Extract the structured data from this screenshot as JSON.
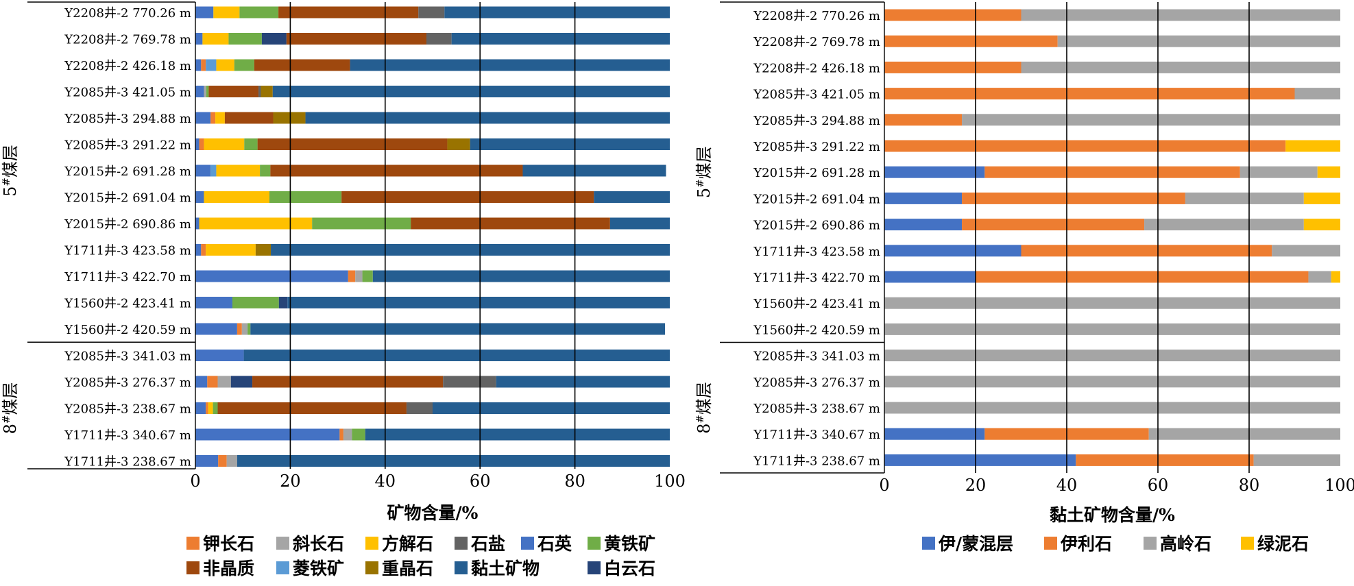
{
  "colors": {
    "钾长石": "#ED7D31",
    "斜长石": "#A5A5A5",
    "方解石": "#FFC000",
    "石盐": "#636363",
    "石英": "#4472C4",
    "黄铁矿": "#70AD47",
    "非晶质": "#9E480E",
    "菱铁矿": "#5B9BD5",
    "重晶石": "#997300",
    "黏土矿物": "#255E91",
    "白云石": "#264478",
    "伊/蒙混层": "#4472C4",
    "伊利石": "#ED7D31",
    "高岭石": "#A5A5A5",
    "绿泥石": "#FFC000"
  },
  "chart_data": [
    {
      "type": "bar",
      "orientation": "horizontal",
      "stacked": true,
      "xlabel": "矿物含量/%",
      "xlim": [
        0,
        100
      ],
      "xticks": [
        "0",
        "20",
        "40",
        "60",
        "80",
        "100"
      ],
      "grid": true,
      "legend_position": "bottom",
      "groups": [
        {
          "label": "5#煤层",
          "sup": "#",
          "base": "5",
          "suffix": "煤层",
          "rows": [
            0,
            12
          ]
        },
        {
          "label": "8#煤层",
          "sup": "#",
          "base": "8",
          "suffix": "煤层",
          "rows": [
            13,
            17
          ]
        }
      ],
      "categories": [
        "Y2208井-2 770.26 m",
        "Y2208井-2 769.78 m",
        "Y2208井-2 426.18 m",
        "Y2085井-3 421.05 m",
        "Y2085井-3 294.88 m",
        "Y2085井-3 291.22 m",
        "Y2015井-2 691.28 m",
        "Y2015井-2 691.04 m",
        "Y2015井-2 690.86 m",
        "Y1711井-3 423.58 m",
        "Y1711井-3 422.70 m",
        "Y1560井-2 423.41 m",
        "Y1560井-2 420.59 m",
        "Y2085井-3 341.03 m",
        "Y2085井-3 276.37 m",
        "Y2085井-3 238.67 m",
        "Y1711井-3 340.67 m",
        "Y1711井-3 238.67 m"
      ],
      "series": [
        {
          "name": "石英",
          "values": [
            3.8,
            1.5,
            1.2,
            1.8,
            3.2,
            0.8,
            3.2,
            1.8,
            0.8,
            1.2,
            32.2,
            7.8,
            8.8,
            10.2,
            2.5,
            2.2,
            30.4,
            4.8
          ]
        },
        {
          "name": "钾长石",
          "values": [
            0,
            0,
            1.0,
            0,
            1.0,
            1.0,
            0,
            0,
            0,
            1.0,
            1.5,
            0,
            1.0,
            0,
            2.2,
            0.5,
            0.8,
            1.8
          ]
        },
        {
          "name": "斜长石",
          "values": [
            0,
            0,
            0,
            0.5,
            0,
            0,
            0,
            0,
            0,
            0,
            1.5,
            0,
            1.2,
            0,
            2.8,
            0,
            1.8,
            2.2
          ]
        },
        {
          "name": "菱铁矿",
          "values": [
            0,
            0,
            2.2,
            0,
            0,
            0,
            1.2,
            0,
            0,
            0,
            0,
            0,
            0,
            0,
            0,
            0,
            0,
            0
          ]
        },
        {
          "name": "方解石",
          "values": [
            5.5,
            5.5,
            3.8,
            0,
            2.0,
            8.5,
            9.2,
            13.8,
            23.8,
            10.5,
            0,
            0,
            0,
            0,
            0,
            1.0,
            0,
            0
          ]
        },
        {
          "name": "黄铁矿",
          "values": [
            8.2,
            7.0,
            4.2,
            0.5,
            0,
            2.8,
            2.2,
            15.2,
            20.8,
            0,
            2.2,
            9.8,
            0.6,
            0,
            0,
            1.0,
            2.8,
            0
          ]
        },
        {
          "name": "白云石",
          "values": [
            0,
            5.2,
            0,
            0,
            0,
            0,
            0,
            0,
            0,
            0,
            0,
            1.8,
            0,
            0,
            4.5,
            0,
            0,
            0
          ]
        },
        {
          "name": "非晶质",
          "values": [
            29.5,
            29.5,
            20.2,
            10.5,
            10.2,
            40.0,
            53.2,
            53.2,
            42.0,
            0,
            0,
            0,
            0,
            0,
            40.2,
            39.8,
            0,
            0
          ]
        },
        {
          "name": "石盐",
          "values": [
            5.5,
            5.3,
            0,
            0.5,
            0,
            0,
            0,
            0,
            0,
            0,
            0,
            0,
            0,
            0,
            11.2,
            5.5,
            0,
            0
          ]
        },
        {
          "name": "重晶石",
          "values": [
            0,
            0,
            0,
            2.5,
            6.8,
            4.8,
            0,
            0,
            0,
            3.2,
            0,
            0,
            0,
            0,
            0,
            0,
            0,
            0
          ]
        },
        {
          "name": "黏土矿物",
          "values": [
            47.5,
            46.0,
            67.4,
            83.7,
            76.8,
            42.1,
            30.2,
            16.0,
            12.6,
            84.1,
            62.6,
            80.6,
            87.4,
            89.8,
            36.6,
            50.0,
            64.2,
            91.2
          ]
        }
      ],
      "legend": [
        [
          "钾长石",
          "斜长石",
          "方解石",
          "石盐",
          "石英",
          "黄铁矿"
        ],
        [
          "非晶质",
          "菱铁矿",
          "重晶石",
          "黏土矿物",
          "白云石"
        ]
      ]
    },
    {
      "type": "bar",
      "orientation": "horizontal",
      "stacked": true,
      "xlabel": "黏土矿物含量/%",
      "xlim": [
        0,
        100
      ],
      "xticks": [
        "0",
        "20",
        "40",
        "60",
        "80",
        "100"
      ],
      "grid": true,
      "legend_position": "bottom",
      "groups": [
        {
          "label": "5#煤层",
          "sup": "#",
          "base": "5",
          "suffix": "煤层",
          "rows": [
            0,
            12
          ]
        },
        {
          "label": "8#煤层",
          "sup": "#",
          "base": "8",
          "suffix": "煤层",
          "rows": [
            13,
            17
          ]
        }
      ],
      "categories": [
        "Y2208井-2 770.26 m",
        "Y2208井-2 769.78 m",
        "Y2208井-2 426.18 m",
        "Y2085井-3 421.05 m",
        "Y2085井-3 294.88 m",
        "Y2085井-3 291.22 m",
        "Y2015井-2 691.28 m",
        "Y2015井-2 691.04 m",
        "Y2015井-2 690.86 m",
        "Y1711井-3 423.58 m",
        "Y1711井-3 422.70 m",
        "Y1560井-2 423.41 m",
        "Y1560井-2 420.59 m",
        "Y2085井-3 341.03 m",
        "Y2085井-3 276.37 m",
        "Y2085井-3 238.67 m",
        "Y1711井-3 340.67 m",
        "Y1711井-3 238.67 m"
      ],
      "series": [
        {
          "name": "伊/蒙混层",
          "values": [
            0,
            0,
            0,
            0,
            0,
            0,
            22,
            17,
            17,
            30,
            20,
            0,
            0,
            0,
            0,
            0,
            22,
            42
          ]
        },
        {
          "name": "伊利石",
          "values": [
            30,
            38,
            30,
            90,
            17,
            88,
            56,
            49,
            40,
            55,
            73,
            0,
            0,
            0,
            0,
            0,
            36,
            39
          ]
        },
        {
          "name": "高岭石",
          "values": [
            70,
            62,
            70,
            10,
            83,
            0,
            17,
            26,
            35,
            15,
            5,
            100,
            100,
            100,
            100,
            100,
            42,
            19
          ]
        },
        {
          "name": "绿泥石",
          "values": [
            0,
            0,
            0,
            0,
            0,
            12,
            5,
            8,
            8,
            0,
            2,
            0,
            0,
            0,
            0,
            0,
            0,
            0
          ]
        }
      ],
      "legend": [
        [
          "伊/蒙混层",
          "伊利石",
          "高岭石",
          "绿泥石"
        ]
      ]
    }
  ]
}
